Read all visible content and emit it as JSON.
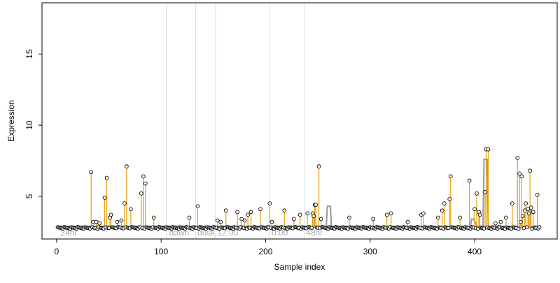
{
  "chart_data": {
    "type": "scatter",
    "title": "",
    "xlabel": "Sample index",
    "ylabel": "Expression",
    "xlim": [
      -14,
      479
    ],
    "ylim": [
      2.0,
      18.6
    ],
    "xticks": [
      0,
      100,
      200,
      300,
      400
    ],
    "yticks": [
      5,
      10,
      15
    ],
    "baseline": 2.85,
    "grid": false,
    "legend": "none",
    "colors": {
      "stem": "#e69f00",
      "point_stroke": "#000000",
      "baseline_line": "#6f9bd8",
      "vline": "#dddddd",
      "gray_line": "#999999"
    },
    "vlines": [
      105,
      133,
      152,
      204,
      237
    ],
    "annotations": [
      {
        "x": 3,
        "text": "24hr"
      },
      {
        "x": 107,
        "text": "dawn"
      },
      {
        "x": 134,
        "text": "dusk"
      },
      {
        "x": 153,
        "text": "12:00"
      },
      {
        "x": 205,
        "text": "0:00"
      },
      {
        "x": 238,
        "text": "48hr"
      }
    ],
    "gray_segments": [
      {
        "x": [
          258,
          259,
          260,
          261,
          262,
          263
        ],
        "y": [
          2.8,
          4.3,
          4.3,
          4.3,
          4.3,
          2.8
        ]
      },
      {
        "x": [
          396,
          397,
          398,
          399,
          403
        ],
        "y": [
          2.8,
          3.4,
          3.4,
          3.4,
          2.8
        ]
      },
      {
        "x": [
          408,
          409,
          410,
          411,
          412,
          413
        ],
        "y": [
          2.8,
          7.6,
          7.6,
          7.6,
          7.6,
          2.8
        ]
      }
    ],
    "peaks": [
      {
        "x": 33,
        "y": 6.7
      },
      {
        "x": 35,
        "y": 3.2
      },
      {
        "x": 38,
        "y": 3.2
      },
      {
        "x": 41,
        "y": 3.1
      },
      {
        "x": 46,
        "y": 4.9
      },
      {
        "x": 48,
        "y": 6.3
      },
      {
        "x": 51,
        "y": 3.5
      },
      {
        "x": 52,
        "y": 3.7
      },
      {
        "x": 58,
        "y": 3.2
      },
      {
        "x": 62,
        "y": 3.3
      },
      {
        "x": 65,
        "y": 4.5
      },
      {
        "x": 67,
        "y": 7.1
      },
      {
        "x": 71,
        "y": 4.1
      },
      {
        "x": 81,
        "y": 5.2
      },
      {
        "x": 83,
        "y": 6.4
      },
      {
        "x": 85,
        "y": 5.9
      },
      {
        "x": 93,
        "y": 3.5
      },
      {
        "x": 127,
        "y": 3.5
      },
      {
        "x": 135,
        "y": 4.3
      },
      {
        "x": 154,
        "y": 3.3
      },
      {
        "x": 157,
        "y": 3.2
      },
      {
        "x": 162,
        "y": 4.0
      },
      {
        "x": 173,
        "y": 3.9
      },
      {
        "x": 177,
        "y": 3.4
      },
      {
        "x": 180,
        "y": 3.3
      },
      {
        "x": 183,
        "y": 3.7
      },
      {
        "x": 186,
        "y": 3.9
      },
      {
        "x": 195,
        "y": 4.1
      },
      {
        "x": 204,
        "y": 4.5
      },
      {
        "x": 206,
        "y": 3.2
      },
      {
        "x": 218,
        "y": 4.0
      },
      {
        "x": 227,
        "y": 3.4
      },
      {
        "x": 233,
        "y": 3.7
      },
      {
        "x": 240,
        "y": 3.8
      },
      {
        "x": 245,
        "y": 3.8
      },
      {
        "x": 246,
        "y": 3.6
      },
      {
        "x": 247,
        "y": 4.4
      },
      {
        "x": 248,
        "y": 4.4
      },
      {
        "x": 251,
        "y": 7.1
      },
      {
        "x": 253,
        "y": 3.4
      },
      {
        "x": 280,
        "y": 3.5
      },
      {
        "x": 303,
        "y": 3.4
      },
      {
        "x": 316,
        "y": 3.7
      },
      {
        "x": 320,
        "y": 3.8
      },
      {
        "x": 336,
        "y": 3.2
      },
      {
        "x": 349,
        "y": 3.7
      },
      {
        "x": 351,
        "y": 3.8
      },
      {
        "x": 365,
        "y": 3.5
      },
      {
        "x": 369,
        "y": 4.0
      },
      {
        "x": 371,
        "y": 4.5
      },
      {
        "x": 376,
        "y": 4.8
      },
      {
        "x": 377,
        "y": 6.4
      },
      {
        "x": 386,
        "y": 3.5
      },
      {
        "x": 395,
        "y": 6.1
      },
      {
        "x": 400,
        "y": 4.1
      },
      {
        "x": 402,
        "y": 5.2
      },
      {
        "x": 404,
        "y": 3.9
      },
      {
        "x": 405,
        "y": 3.7
      },
      {
        "x": 410,
        "y": 5.3
      },
      {
        "x": 411,
        "y": 8.3
      },
      {
        "x": 413,
        "y": 8.3
      },
      {
        "x": 420,
        "y": 3.1
      },
      {
        "x": 425,
        "y": 3.2
      },
      {
        "x": 430,
        "y": 3.5
      },
      {
        "x": 436,
        "y": 4.5
      },
      {
        "x": 441,
        "y": 7.7
      },
      {
        "x": 443,
        "y": 6.6
      },
      {
        "x": 444,
        "y": 3.2
      },
      {
        "x": 445,
        "y": 6.4
      },
      {
        "x": 446,
        "y": 3.6
      },
      {
        "x": 448,
        "y": 4.0
      },
      {
        "x": 449,
        "y": 4.5
      },
      {
        "x": 451,
        "y": 4.1
      },
      {
        "x": 452,
        "y": 3.8
      },
      {
        "x": 453,
        "y": 6.8
      },
      {
        "x": 454,
        "y": 4.2
      },
      {
        "x": 456,
        "y": 3.9
      },
      {
        "x": 460,
        "y": 5.1
      }
    ],
    "background_points": "one point per sample index from 1 to 462 at about 2.7–2.85 expression (baseline level) where no peak is listed"
  }
}
